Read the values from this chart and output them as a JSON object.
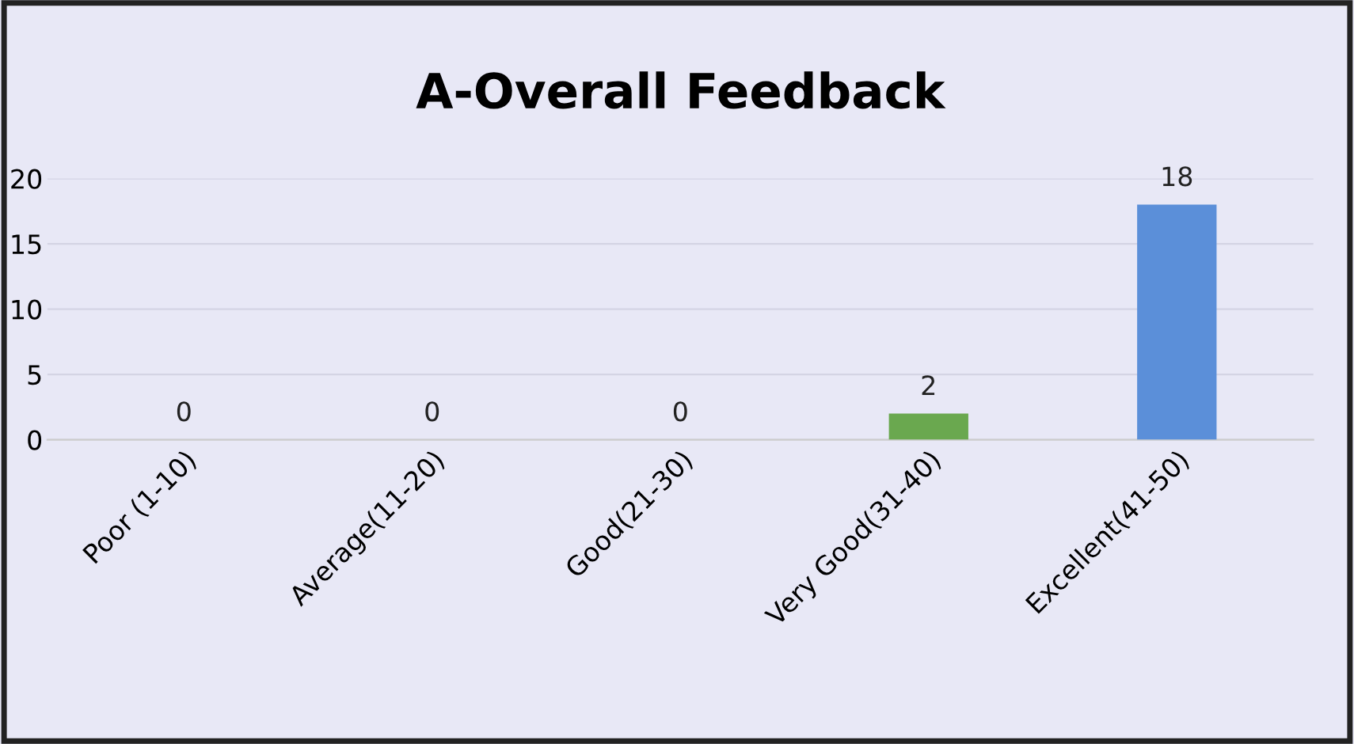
{
  "chart_data": {
    "type": "bar",
    "title": "A-Overall Feedback",
    "categories": [
      "Poor (1-10)",
      "Average(11-20)",
      "Good(21-30)",
      "Very Good(31-40)",
      "Excellent(41-50)"
    ],
    "values": [
      0,
      0,
      0,
      2,
      18
    ],
    "colors": [
      "#5b8fd9",
      "#5b8fd9",
      "#5b8fd9",
      "#6aa84f",
      "#5b8fd9"
    ],
    "ylim": [
      0,
      20
    ],
    "yticks": [
      0,
      5,
      10,
      15,
      20
    ],
    "grid": "y",
    "data_labels": true,
    "legend": false
  }
}
